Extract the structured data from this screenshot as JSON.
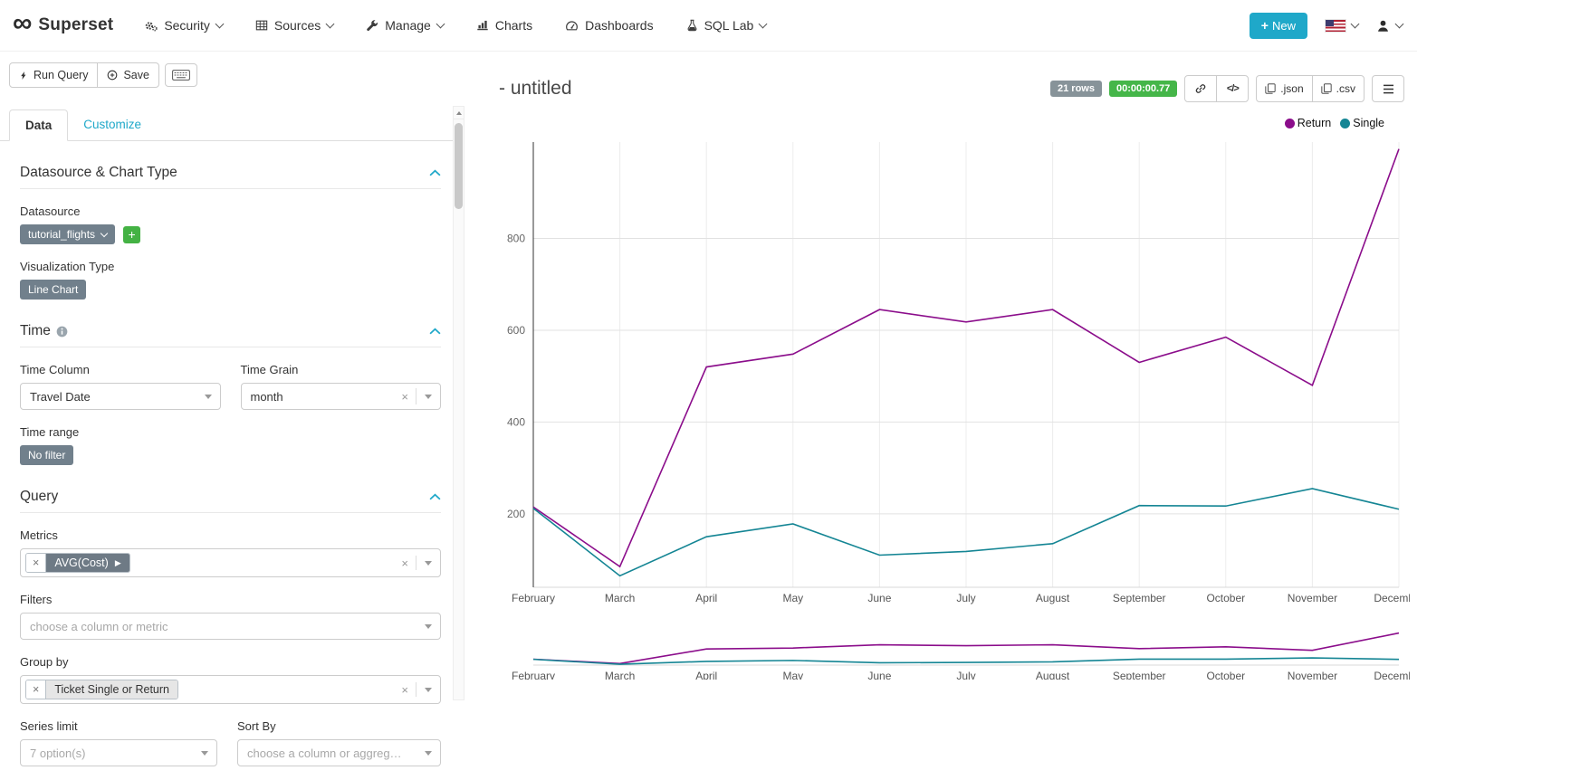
{
  "navbar": {
    "brand": "Superset",
    "items": [
      {
        "label": "Security",
        "icon": "gears-icon",
        "has_caret": true
      },
      {
        "label": "Sources",
        "icon": "table-icon",
        "has_caret": true
      },
      {
        "label": "Manage",
        "icon": "wrench-icon",
        "has_caret": true
      },
      {
        "label": "Charts",
        "icon": "bar-chart-icon",
        "has_caret": false
      },
      {
        "label": "Dashboards",
        "icon": "dashboard-icon",
        "has_caret": false
      },
      {
        "label": "SQL Lab",
        "icon": "flask-icon",
        "has_caret": true
      }
    ],
    "new_button": "New"
  },
  "toolbar": {
    "run_query": "Run Query",
    "save": "Save"
  },
  "tabs": [
    {
      "label": "Data",
      "active": true
    },
    {
      "label": "Customize",
      "active": false
    }
  ],
  "controls": {
    "datasource_section": {
      "title": "Datasource & Chart Type",
      "datasource_label": "Datasource",
      "datasource_value": "tutorial_flights",
      "viz_type_label": "Visualization Type",
      "viz_type_value": "Line Chart"
    },
    "time_section": {
      "title": "Time",
      "time_column_label": "Time Column",
      "time_column_value": "Travel Date",
      "time_grain_label": "Time Grain",
      "time_grain_value": "month",
      "time_range_label": "Time range",
      "time_range_value": "No filter"
    },
    "query_section": {
      "title": "Query",
      "metrics_label": "Metrics",
      "metrics_value": "AVG(Cost)",
      "filters_label": "Filters",
      "filters_placeholder": "choose a column or metric",
      "groupby_label": "Group by",
      "groupby_value": "Ticket Single or Return",
      "series_limit_label": "Series limit",
      "series_limit_placeholder": "7 option(s)",
      "sort_by_label": "Sort By",
      "sort_by_placeholder": "choose a column or aggregate function"
    }
  },
  "chart_header": {
    "title": "- untitled",
    "rows_badge": "21 rows",
    "duration_badge": "00:00:00.77",
    "code_button": "</>",
    "json_button": ".json",
    "csv_button": ".csv"
  },
  "chart_data": {
    "type": "line",
    "title": "- untitled",
    "x": [
      "February",
      "March",
      "April",
      "May",
      "June",
      "July",
      "August",
      "September",
      "October",
      "November",
      "December"
    ],
    "xlabel": "",
    "ylabel": "",
    "yticks": [
      200,
      400,
      600,
      800
    ],
    "ylim": [
      40,
      1010
    ],
    "grid": true,
    "legend_position": "top-right",
    "series": [
      {
        "name": "Return",
        "color": "#8b0d8b",
        "values": [
          215,
          85,
          520,
          548,
          645,
          618,
          645,
          530,
          585,
          480,
          995
        ]
      },
      {
        "name": "Single",
        "color": "#148594",
        "values": [
          212,
          65,
          150,
          178,
          110,
          118,
          135,
          218,
          217,
          255,
          210
        ]
      }
    ],
    "has_mini_preview": true
  },
  "colors": {
    "accent": "#1fa8c9",
    "rows_badge_bg": "#879399",
    "duration_badge_bg": "#45b649",
    "control_badge_bg": "#71808c",
    "add_button_bg": "#44b244"
  }
}
